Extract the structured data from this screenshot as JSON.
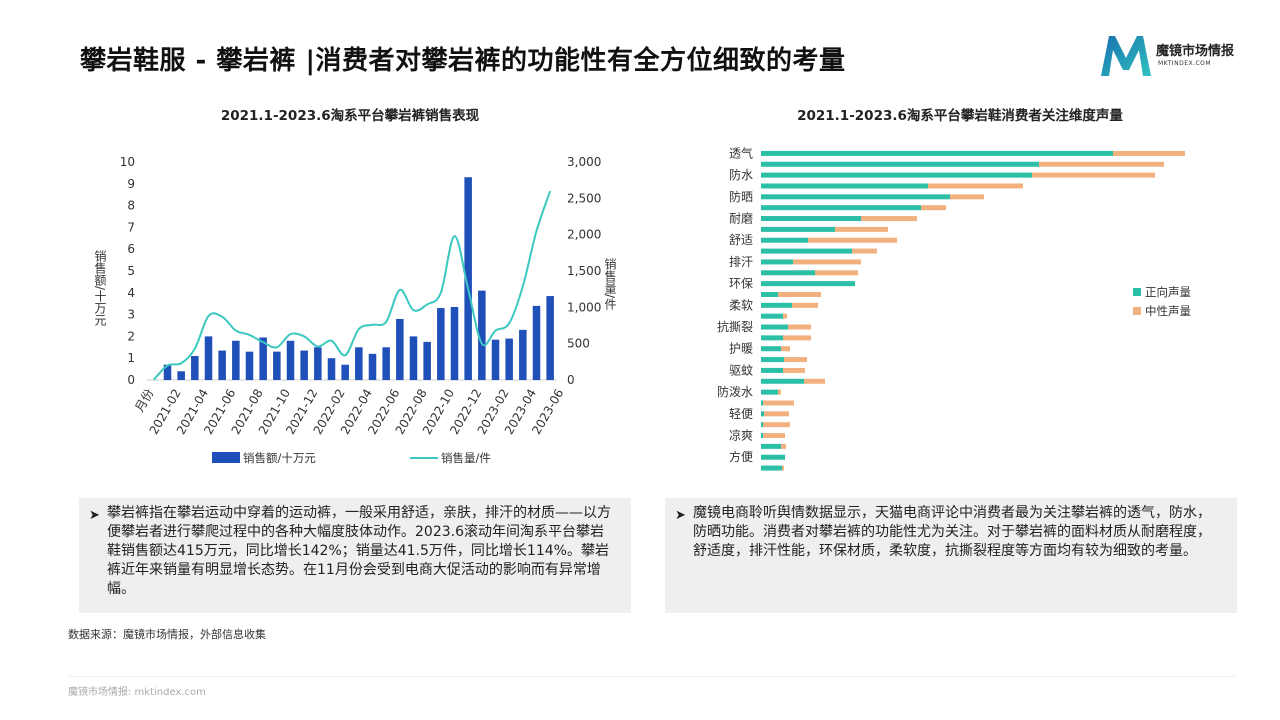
{
  "title": "攀岩鞋服 - 攀岩裤 |消费者对攀岩裤的功能性有全方位细致的考量",
  "logo": {
    "name": "魔镜市场情报",
    "sub": "MKTINDEX.COM"
  },
  "left_chart_title": "2021.1-2023.6淘系平台攀岩裤销售表现",
  "right_chart_title": "2021.1-2023.6淘系平台攀岩鞋消费者关注维度声量",
  "left_text": "攀岩裤指在攀岩运动中穿着的运动裤，一般采用舒适，亲肤，排汗的材质——以方便攀岩者进行攀爬过程中的各种大幅度肢体动作。2023.6滚动年间淘系平台攀岩鞋销售额达415万元，同比增长142%；销量达41.5万件，同比增长114%。攀岩裤近年来销量有明显增长态势。在11月份会受到电商大促活动的影响而有异常增幅。",
  "right_text": "魔镜电商聆听舆情数据显示，天猫电商评论中消费者最为关注攀岩裤的透气，防水，防晒功能。消费者对攀岩裤的功能性尤为关注。对于攀岩裤的面料材质从耐磨程度，舒适度，排汗性能，环保材质，柔软度，抗撕裂程度等方面均有较为细致的考量。",
  "source": "数据来源：魔镜市场情报，外部信息收集",
  "footer": "魔镜市场情报: mktindex.com",
  "colors": {
    "bar": "#1f4fb8",
    "line": "#3cc8c0",
    "positive": "#2bbfa8",
    "neutral": "#f3b07f"
  },
  "chart_data": [
    {
      "type": "bar+line",
      "title": "2021.1-2023.6淘系平台攀岩裤销售表现",
      "x_axis_title": "月份",
      "x_tick_labels": [
        "2021-02",
        "2021-04",
        "2021-06",
        "2021-08",
        "2021-10",
        "2021-12",
        "2022-02",
        "2022-04",
        "2022-06",
        "2022-08",
        "2022-10",
        "2022-12",
        "2023-02",
        "2023-04",
        "2023-06"
      ],
      "categories": [
        "2021-01",
        "2021-02",
        "2021-03",
        "2021-04",
        "2021-05",
        "2021-06",
        "2021-07",
        "2021-08",
        "2021-09",
        "2021-10",
        "2021-11",
        "2021-12",
        "2022-01",
        "2022-02",
        "2022-03",
        "2022-04",
        "2022-05",
        "2022-06",
        "2022-07",
        "2022-08",
        "2022-09",
        "2022-10",
        "2022-11",
        "2022-12",
        "2023-01",
        "2023-02",
        "2023-03",
        "2023-04",
        "2023-05",
        "2023-06"
      ],
      "ylabel_left": "销售额/十万元",
      "ylabel_right": "销售量/件",
      "ylim_left": [
        0,
        10
      ],
      "ylim_right": [
        0,
        3000
      ],
      "yticks_left": [
        "0",
        "1",
        "2",
        "3",
        "4",
        "5",
        "6",
        "7",
        "8",
        "9",
        "10"
      ],
      "yticks_right": [
        "0",
        "500",
        "1,000",
        "1,500",
        "2,000",
        "2,500",
        "3,000"
      ],
      "series": [
        {
          "name": "销售额/十万元",
          "type": "bar",
          "axis": "left",
          "values": [
            0.0,
            0.7,
            0.4,
            1.1,
            2.0,
            1.35,
            1.8,
            1.3,
            1.95,
            1.3,
            1.8,
            1.35,
            1.5,
            1.0,
            0.7,
            1.5,
            1.2,
            1.5,
            2.8,
            2.0,
            1.75,
            3.3,
            3.35,
            9.3,
            4.1,
            1.85,
            1.9,
            2.3,
            3.4,
            3.85
          ]
        },
        {
          "name": "销售量/件",
          "type": "line",
          "axis": "right",
          "values": [
            5,
            200,
            230,
            430,
            880,
            870,
            680,
            620,
            520,
            450,
            630,
            600,
            460,
            540,
            340,
            700,
            760,
            800,
            1240,
            960,
            1040,
            1200,
            1980,
            1250,
            500,
            680,
            780,
            1290,
            2050,
            2600
          ]
        }
      ]
    },
    {
      "type": "bar",
      "orientation": "horizontal",
      "stacked": true,
      "title": "2021.1-2023.6淘系平台攀岩鞋消费者关注维度声量",
      "categories": [
        "透气",
        "",
        "防水",
        "",
        "防晒",
        "",
        "耐磨",
        "",
        "舒适",
        "",
        "排汗",
        "",
        "环保",
        "",
        "柔软",
        "",
        "抗撕裂",
        "",
        "护暖",
        "",
        "驱蚊",
        "",
        "防泼水",
        "",
        "轻便",
        "",
        "凉爽",
        "",
        "方便",
        ""
      ],
      "legend_position": "right",
      "series": [
        {
          "name": "正向声量",
          "values": [
            352,
            278,
            271,
            167,
            189,
            160,
            100,
            74,
            47,
            91,
            32,
            54,
            94,
            17,
            31,
            22,
            27,
            22,
            20,
            23,
            22,
            43,
            17,
            2,
            3,
            2,
            2,
            20,
            24,
            21
          ]
        },
        {
          "name": "中性声量",
          "values": [
            72,
            125,
            123,
            95,
            34,
            25,
            56,
            53,
            89,
            25,
            68,
            43,
            0,
            43,
            26,
            4,
            23,
            28,
            9,
            23,
            22,
            21,
            3,
            31,
            25,
            27,
            22,
            5,
            0,
            2
          ]
        }
      ]
    }
  ]
}
